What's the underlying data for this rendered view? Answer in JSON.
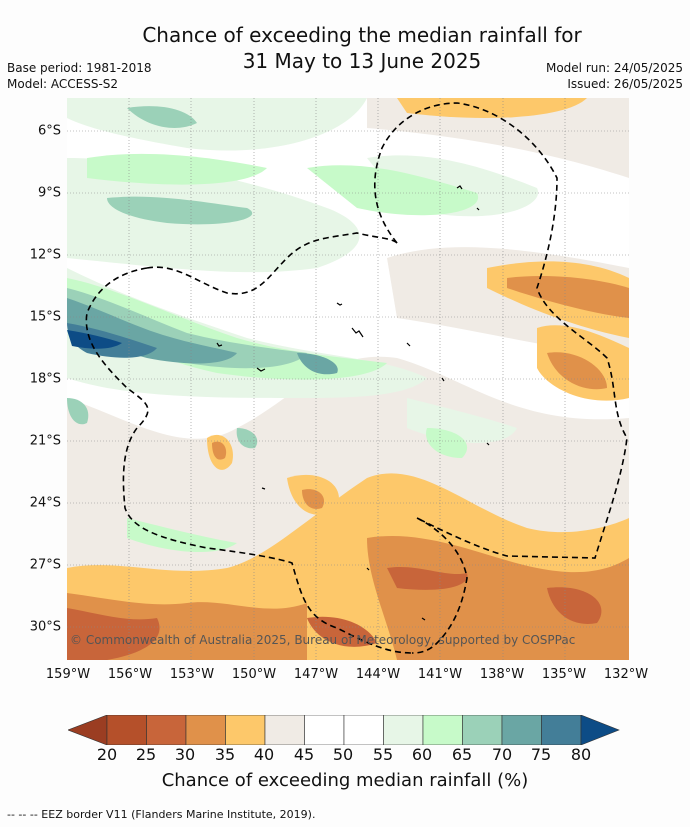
{
  "title": {
    "line1": "Chance of exceeding the median rainfall for",
    "line2": "31 May to 13 June 2025"
  },
  "meta": {
    "base_period": "Base period: 1981-2018",
    "model": "Model: ACCESS-S2",
    "model_run": "Model run: 24/05/2025",
    "issued": "Issued: 26/05/2025"
  },
  "latitude_labels": [
    "6°S",
    "9°S",
    "12°S",
    "15°S",
    "18°S",
    "21°S",
    "24°S",
    "27°S",
    "30°S"
  ],
  "longitude_labels": [
    "159°W",
    "156°W",
    "153°W",
    "150°W",
    "147°W",
    "144°W",
    "141°W",
    "138°W",
    "135°W",
    "132°W"
  ],
  "copyright": "© Commonwealth of Australia 2025, Bureau of Meteorology, supported by COSPPac",
  "colorbar": {
    "labels": [
      "20",
      "25",
      "30",
      "35",
      "40",
      "45",
      "50",
      "55",
      "60",
      "65",
      "70",
      "75",
      "80"
    ],
    "colors": [
      "#9b3d22",
      "#b5502a",
      "#c8653a",
      "#e0914a",
      "#fdc86a",
      "#f0ebe5",
      "#ffffff",
      "#ffffff",
      "#e7f6e7",
      "#c7fac9",
      "#9bd1b8",
      "#6aa6a4",
      "#437e98",
      "#0d4c86"
    ],
    "title": "Chance of exceeding median rainfall (%)"
  },
  "footer": "-- -- -- EEZ border V11 (Flanders Marine Institute, 2019)."
}
